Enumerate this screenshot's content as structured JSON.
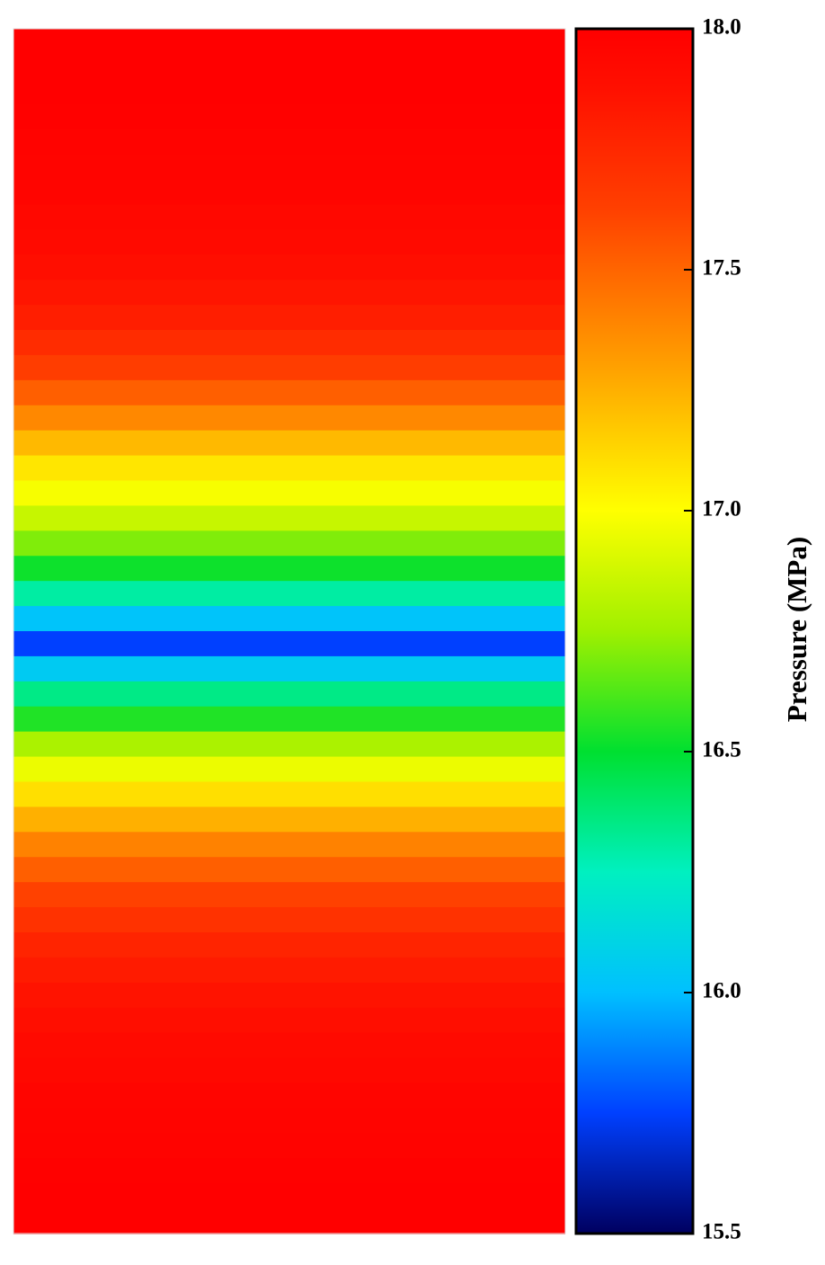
{
  "chart_data": {
    "type": "heatmap",
    "colorbar_label": "Pressure (MPa)",
    "values": [
      18.0,
      18.0,
      18.0,
      17.99,
      17.98,
      17.97,
      17.96,
      17.94,
      17.92,
      17.89,
      17.85,
      17.8,
      17.73,
      17.64,
      17.52,
      17.38,
      17.22,
      17.08,
      16.98,
      16.85,
      16.7,
      16.52,
      16.3,
      16.02,
      15.75,
      16.05,
      16.35,
      16.55,
      16.78,
      16.95,
      17.1,
      17.25,
      17.4,
      17.52,
      17.62,
      17.7,
      17.77,
      17.82,
      17.86,
      17.89,
      17.92,
      17.94,
      17.96,
      17.97,
      17.98,
      17.99,
      18.0,
      18.0
    ],
    "clim": [
      15.5,
      18
    ],
    "cticks": [
      {
        "value": 15.5,
        "label": "15.5"
      },
      {
        "value": 16,
        "label": "16.0"
      },
      {
        "value": 16.5,
        "label": "16.5"
      },
      {
        "value": 17,
        "label": "17.0"
      },
      {
        "value": 17.5,
        "label": "17.5"
      },
      {
        "value": 18,
        "label": "18.0"
      }
    ],
    "colorscale": [
      [
        0,
        "#000060"
      ],
      [
        0.1,
        "#0040ff"
      ],
      [
        0.2,
        "#00c0ff"
      ],
      [
        0.3,
        "#00f0c0"
      ],
      [
        0.4,
        "#00e030"
      ],
      [
        0.5,
        "#a0f000"
      ],
      [
        0.6,
        "#ffff00"
      ],
      [
        0.72,
        "#ffa000"
      ],
      [
        0.85,
        "#ff4000"
      ],
      [
        0.95,
        "#ff1000"
      ],
      [
        1,
        "#ff0000"
      ]
    ]
  }
}
